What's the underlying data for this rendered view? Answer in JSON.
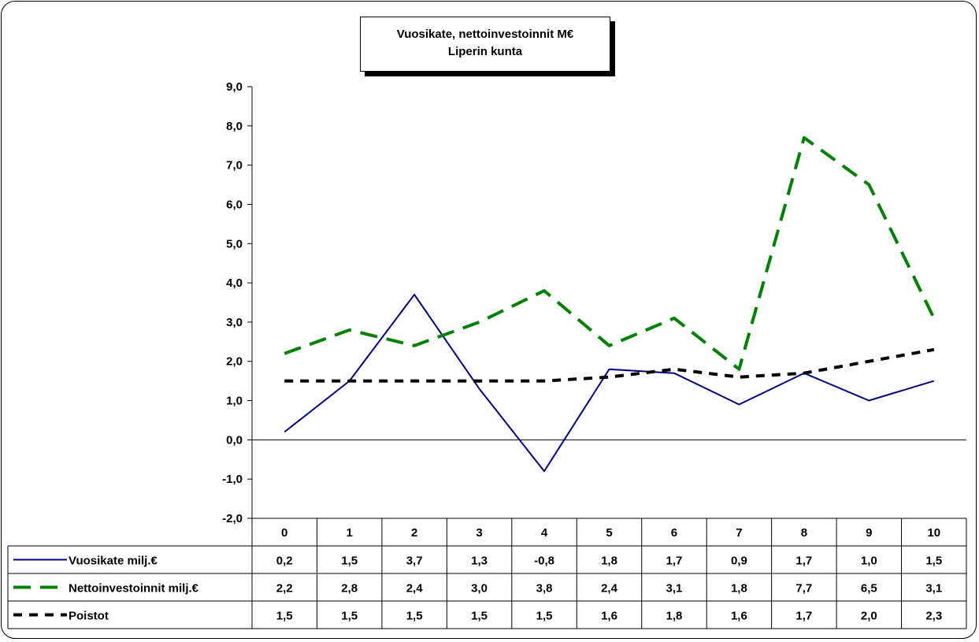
{
  "chart_data": {
    "type": "line",
    "title": "Vuosikate, nettoinvestoinnit M€",
    "subtitle": "Liperin kunta",
    "categories": [
      "0",
      "1",
      "2",
      "3",
      "4",
      "5",
      "6",
      "7",
      "8",
      "9",
      "10"
    ],
    "ylim": [
      -2.0,
      9.0
    ],
    "ytick_labels": [
      "-2,0",
      "-1,0",
      "0,0",
      "1,0",
      "2,0",
      "3,0",
      "4,0",
      "5,0",
      "6,0",
      "7,0",
      "8,0",
      "9,0"
    ],
    "grid": false,
    "legend": "data-table",
    "series": [
      {
        "name": "Vuosikate milj.€",
        "color": "#000080",
        "style": "solid",
        "values": [
          0.2,
          1.5,
          3.7,
          1.3,
          -0.8,
          1.8,
          1.7,
          0.9,
          1.7,
          1.0,
          1.5
        ],
        "labels": [
          "0,2",
          "1,5",
          "3,7",
          "1,3",
          "-0,8",
          "1,8",
          "1,7",
          "0,9",
          "1,7",
          "1,0",
          "1,5"
        ]
      },
      {
        "name": "Nettoinvestoinnit milj.€",
        "color": "#008000",
        "style": "long-dash",
        "values": [
          2.2,
          2.8,
          2.4,
          3.0,
          3.8,
          2.4,
          3.1,
          1.8,
          7.7,
          6.5,
          3.1
        ],
        "labels": [
          "2,2",
          "2,8",
          "2,4",
          "3,0",
          "3,8",
          "2,4",
          "3,1",
          "1,8",
          "7,7",
          "6,5",
          "3,1"
        ]
      },
      {
        "name": "Poistot",
        "color": "#000000",
        "style": "short-dash",
        "values": [
          1.5,
          1.5,
          1.5,
          1.5,
          1.5,
          1.6,
          1.8,
          1.6,
          1.7,
          2.0,
          2.3
        ],
        "labels": [
          "1,5",
          "1,5",
          "1,5",
          "1,5",
          "1,5",
          "1,6",
          "1,8",
          "1,6",
          "1,7",
          "2,0",
          "2,3"
        ]
      }
    ]
  }
}
